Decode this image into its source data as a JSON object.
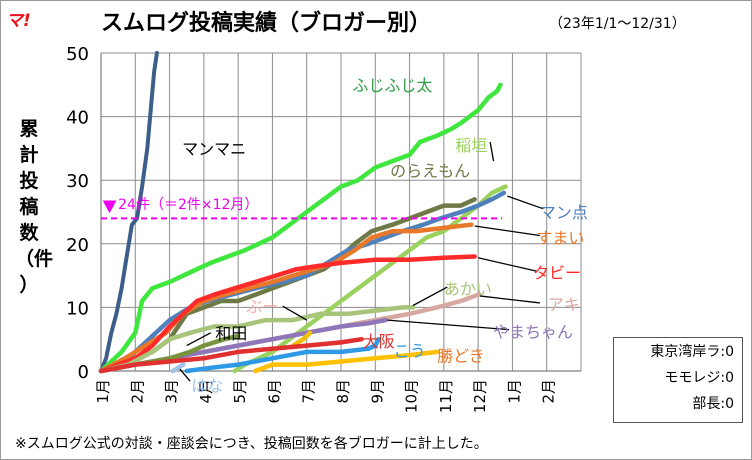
{
  "logo": "マ!",
  "title": "スムログ投稿実績（ブロガー別）",
  "subtitle": "（23年1/1～12/31）",
  "ylabel_chars": [
    "累",
    "計",
    "投",
    "稿",
    "数",
    "（件",
    "）"
  ],
  "reference_label": "24件（＝2件×12月）",
  "footnote": "※スムログ公式の対談・座談会につき、投稿回数を各ブロガーに計上した。",
  "counts_box": [
    {
      "name": "東京湾岸ラ",
      "value": "0"
    },
    {
      "name": "モモレジ",
      "value": "0"
    },
    {
      "name": "部長",
      "value": "0"
    }
  ],
  "colors": {
    "reference": "#ee00ee",
    "logo": "#e8141e"
  },
  "chart_data": {
    "type": "line",
    "x_tick_labels": [
      "1月",
      "2月",
      "3月",
      "4月",
      "5月",
      "6月",
      "7月",
      "8月",
      "9月",
      "10月",
      "11月",
      "12月",
      "1月",
      "2月"
    ],
    "xlim": [
      1,
      15
    ],
    "ylim": [
      0,
      50
    ],
    "y_ticks": [
      0,
      10,
      20,
      30,
      40,
      50
    ],
    "grid": true,
    "reference_line": {
      "y": 24,
      "label": "24件（＝2件×12月）"
    },
    "series": [
      {
        "name": "マンマニ",
        "color": "#3b5f8a",
        "points": [
          [
            1,
            0
          ],
          [
            1.15,
            2
          ],
          [
            1.3,
            6
          ],
          [
            1.45,
            9
          ],
          [
            1.6,
            13
          ],
          [
            1.75,
            18
          ],
          [
            1.9,
            23
          ],
          [
            2.05,
            24
          ],
          [
            2.2,
            29
          ],
          [
            2.35,
            35
          ],
          [
            2.45,
            41
          ],
          [
            2.55,
            47
          ],
          [
            2.63,
            50
          ]
        ]
      },
      {
        "name": "ふじふじ太",
        "color": "#3ee63e",
        "points": [
          [
            1,
            0
          ],
          [
            1.6,
            3
          ],
          [
            2.0,
            6
          ],
          [
            2.2,
            11
          ],
          [
            2.5,
            13
          ],
          [
            3.0,
            14
          ],
          [
            3.4,
            15
          ],
          [
            3.8,
            16
          ],
          [
            4.2,
            17
          ],
          [
            4.7,
            18
          ],
          [
            5.2,
            19
          ],
          [
            6.0,
            21
          ],
          [
            6.5,
            23
          ],
          [
            7.0,
            25
          ],
          [
            7.5,
            27
          ],
          [
            8.0,
            29
          ],
          [
            8.5,
            30
          ],
          [
            9.0,
            32
          ],
          [
            9.5,
            33
          ],
          [
            10.0,
            34
          ],
          [
            10.3,
            36
          ],
          [
            10.8,
            37
          ],
          [
            11.2,
            38
          ],
          [
            11.5,
            39
          ],
          [
            12.0,
            41
          ],
          [
            12.3,
            43
          ],
          [
            12.55,
            44
          ],
          [
            12.65,
            45
          ]
        ]
      },
      {
        "name": "稲垣",
        "color": "#9bd25e",
        "points": [
          [
            4.9,
            0
          ],
          [
            5.2,
            1
          ],
          [
            5.6,
            2
          ],
          [
            6.0,
            3
          ],
          [
            6.5,
            5
          ],
          [
            7.0,
            7
          ],
          [
            7.5,
            9
          ],
          [
            8.0,
            11
          ],
          [
            8.5,
            13
          ],
          [
            9.0,
            15
          ],
          [
            9.5,
            17
          ],
          [
            10.0,
            19
          ],
          [
            10.5,
            21
          ],
          [
            11.0,
            22
          ],
          [
            11.5,
            24
          ],
          [
            12.0,
            26
          ],
          [
            12.4,
            28
          ],
          [
            12.8,
            29
          ]
        ]
      },
      {
        "name": "のらえもん",
        "color": "#6e7a46",
        "points": [
          [
            1,
            0
          ],
          [
            1.5,
            1
          ],
          [
            2.0,
            2
          ],
          [
            2.5,
            3
          ],
          [
            3.0,
            5
          ],
          [
            3.5,
            9
          ],
          [
            4.0,
            10
          ],
          [
            4.5,
            11
          ],
          [
            5.0,
            11
          ],
          [
            5.5,
            12
          ],
          [
            6.0,
            13
          ],
          [
            6.5,
            14
          ],
          [
            7.0,
            15
          ],
          [
            7.5,
            16
          ],
          [
            8.0,
            18
          ],
          [
            8.4,
            20
          ],
          [
            8.9,
            22
          ],
          [
            9.5,
            23
          ],
          [
            10.0,
            24
          ],
          [
            10.5,
            25
          ],
          [
            11.0,
            26
          ],
          [
            11.5,
            26
          ],
          [
            11.9,
            27
          ]
        ]
      },
      {
        "name": "マン点",
        "color": "#4f81bd",
        "points": [
          [
            1,
            0
          ],
          [
            1.8,
            2
          ],
          [
            2.4,
            5
          ],
          [
            3.0,
            8
          ],
          [
            3.6,
            10
          ],
          [
            4.1,
            11
          ],
          [
            4.8,
            12
          ],
          [
            5.5,
            13
          ],
          [
            6.3,
            14
          ],
          [
            7.0,
            15
          ],
          [
            7.6,
            17
          ],
          [
            8.2,
            19
          ],
          [
            8.8,
            20
          ],
          [
            9.3,
            21
          ],
          [
            9.8,
            22
          ],
          [
            10.4,
            23
          ],
          [
            10.9,
            24
          ],
          [
            11.5,
            25
          ],
          [
            12.0,
            26
          ],
          [
            12.4,
            27
          ],
          [
            12.75,
            28
          ]
        ]
      },
      {
        "name": "すまい",
        "color": "#e8782a",
        "points": [
          [
            1,
            0
          ],
          [
            1.7,
            2
          ],
          [
            2.3,
            4
          ],
          [
            2.9,
            6
          ],
          [
            3.4,
            9
          ],
          [
            4.0,
            11
          ],
          [
            4.6,
            12
          ],
          [
            5.3,
            13
          ],
          [
            6.0,
            14
          ],
          [
            6.6,
            15
          ],
          [
            7.2,
            16
          ],
          [
            7.8,
            17
          ],
          [
            8.4,
            19
          ],
          [
            8.9,
            21
          ],
          [
            9.5,
            22
          ],
          [
            10.2,
            22
          ],
          [
            11.0,
            22.5
          ],
          [
            11.8,
            23
          ]
        ]
      },
      {
        "name": "タビー",
        "color": "#ff2a2a",
        "points": [
          [
            1,
            0
          ],
          [
            1.5,
            1
          ],
          [
            2.0,
            2
          ],
          [
            2.5,
            4
          ],
          [
            3.0,
            7
          ],
          [
            3.4,
            9
          ],
          [
            3.8,
            11
          ],
          [
            4.3,
            12
          ],
          [
            4.9,
            13
          ],
          [
            5.5,
            14
          ],
          [
            6.1,
            15
          ],
          [
            6.7,
            16
          ],
          [
            7.3,
            16.5
          ],
          [
            8.0,
            17
          ],
          [
            9.0,
            17.5
          ],
          [
            10.0,
            17.5
          ],
          [
            11.0,
            17.8
          ],
          [
            11.9,
            18
          ]
        ]
      },
      {
        "name": "あかい",
        "color": "#a8c37a",
        "points": [
          [
            1,
            0
          ],
          [
            1.8,
            1
          ],
          [
            2.5,
            3
          ],
          [
            3.0,
            5
          ],
          [
            3.6,
            6
          ],
          [
            4.3,
            7
          ],
          [
            5.0,
            7
          ],
          [
            5.8,
            8
          ],
          [
            6.6,
            8
          ],
          [
            7.4,
            9
          ],
          [
            8.2,
            9
          ],
          [
            9.0,
            9.5
          ],
          [
            9.8,
            10
          ],
          [
            10.1,
            10
          ]
        ]
      },
      {
        "name": "アキ",
        "color": "#d7a8a0",
        "points": [
          [
            1,
            0
          ],
          [
            2.0,
            1
          ],
          [
            3.0,
            2
          ],
          [
            4.0,
            3
          ],
          [
            5.0,
            4
          ],
          [
            6.0,
            5
          ],
          [
            7.0,
            6
          ],
          [
            8.0,
            7
          ],
          [
            9.0,
            8
          ],
          [
            10.0,
            9
          ],
          [
            10.8,
            10
          ],
          [
            11.5,
            11
          ],
          [
            12.0,
            12
          ]
        ]
      },
      {
        "name": "やまちゃん",
        "color": "#8e76b8",
        "points": [
          [
            1,
            0
          ],
          [
            2.0,
            1
          ],
          [
            3.0,
            2
          ],
          [
            4.0,
            3
          ],
          [
            5.0,
            4
          ],
          [
            6.0,
            5
          ],
          [
            7.0,
            6
          ],
          [
            8.0,
            7
          ],
          [
            8.8,
            7.5
          ],
          [
            9.3,
            8
          ]
        ]
      },
      {
        "name": "ぶー",
        "color": "#f0c000",
        "points": [
          [
            6.6,
            4
          ],
          [
            6.9,
            5
          ],
          [
            7.1,
            6
          ]
        ]
      },
      {
        "name": "和田",
        "color": "#77933c",
        "points": [
          [
            1,
            0
          ],
          [
            2.0,
            1
          ],
          [
            3.0,
            2
          ],
          [
            3.6,
            3
          ],
          [
            4.0,
            4
          ],
          [
            4.6,
            5
          ],
          [
            5.0,
            5.5
          ]
        ]
      },
      {
        "name": "大阪",
        "color": "#e03030",
        "points": [
          [
            1,
            0
          ],
          [
            2.0,
            1
          ],
          [
            3.0,
            1.5
          ],
          [
            4.0,
            2
          ],
          [
            5.0,
            3
          ],
          [
            6.0,
            3.5
          ],
          [
            7.0,
            4
          ],
          [
            8.0,
            4.5
          ],
          [
            8.6,
            5
          ]
        ]
      },
      {
        "name": "こう",
        "color": "#2e9ae6",
        "points": [
          [
            3.5,
            0
          ],
          [
            4.2,
            0.5
          ],
          [
            5.0,
            1
          ],
          [
            6.0,
            2
          ],
          [
            7.0,
            3
          ],
          [
            8.0,
            3
          ],
          [
            8.8,
            3.5
          ],
          [
            9.0,
            4
          ],
          [
            9.1,
            5
          ]
        ]
      },
      {
        "name": "勝どき",
        "color": "#ffc000",
        "points": [
          [
            5.5,
            0
          ],
          [
            6.0,
            1
          ],
          [
            7.0,
            1
          ],
          [
            8.0,
            1.5
          ],
          [
            9.0,
            2
          ],
          [
            10.0,
            2.5
          ],
          [
            10.8,
            3
          ]
        ]
      },
      {
        "name": "はな",
        "color": "#9dc3e6",
        "points": [
          [
            3.1,
            0
          ],
          [
            3.4,
            1
          ]
        ]
      }
    ],
    "labels": [
      {
        "text": "マンマニ",
        "color": "#000000",
        "at": [
          4.3,
          35
        ],
        "leader": null
      },
      {
        "text": "ふじふじ太",
        "color": "#2ea043",
        "at": [
          9.5,
          45
        ],
        "leader": null
      },
      {
        "text": "稲垣",
        "color": "#9bd25e",
        "at": [
          11.8,
          35.5
        ],
        "leader": [
          [
            12.35,
            36
          ],
          [
            12.45,
            33
          ]
        ]
      },
      {
        "text": "のらえもん",
        "color": "#6e7a46",
        "at": [
          10.6,
          31.5
        ],
        "leader": null
      },
      {
        "text": "マン点",
        "color": "#4f81bd",
        "at": [
          14.5,
          25
        ],
        "leader": [
          [
            13.9,
            25.5
          ],
          [
            12.85,
            27.5
          ]
        ]
      },
      {
        "text": "すまい",
        "color": "#e8782a",
        "at": [
          14.4,
          21
        ],
        "leader": [
          [
            13.8,
            21.3
          ],
          [
            11.9,
            22.8
          ]
        ]
      },
      {
        "text": "タビー",
        "color": "#ff2a2a",
        "at": [
          14.3,
          15.5
        ],
        "leader": [
          [
            13.7,
            15.7
          ],
          [
            12.0,
            17.8
          ]
        ]
      },
      {
        "text": "あかい",
        "color": "#a8c37a",
        "at": [
          11.7,
          13
        ],
        "leader": [
          [
            11.1,
            13.2
          ],
          [
            10.1,
            10.3
          ]
        ]
      },
      {
        "text": "アキ",
        "color": "#d7a8a0",
        "at": [
          14.5,
          10.5
        ],
        "leader": [
          [
            13.8,
            10.7
          ],
          [
            12.05,
            11.8
          ]
        ]
      },
      {
        "text": "やまちゃん",
        "color": "#8e76b8",
        "at": [
          13.6,
          6.2
        ],
        "leader": [
          [
            12.9,
            6.5
          ],
          [
            9.35,
            8
          ]
        ]
      },
      {
        "text": "ぶー",
        "color": "#f3b0b0",
        "at": [
          5.7,
          10.2
        ],
        "leader": [
          [
            6.3,
            10.2
          ],
          [
            7.0,
            8
          ]
        ]
      },
      {
        "text": "和田",
        "color": "#000000",
        "at": [
          4.8,
          6
        ],
        "leader": [
          [
            4.2,
            6
          ],
          [
            3.5,
            4
          ]
        ]
      },
      {
        "text": "大阪",
        "color": "#e03030",
        "at": [
          9.1,
          4.7
        ],
        "leader": null
      },
      {
        "text": "こう",
        "color": "#2e9ae6",
        "at": [
          10.0,
          3.2
        ],
        "leader": null
      },
      {
        "text": "勝どき",
        "color": "#e8782a",
        "at": [
          11.5,
          2.4
        ],
        "leader": null
      },
      {
        "text": "はな",
        "color": "#9dc3e6",
        "at": [
          4.1,
          -2.3
        ],
        "leader": [
          [
            3.6,
            -1.6
          ],
          [
            3.3,
            0.3
          ]
        ]
      }
    ]
  }
}
